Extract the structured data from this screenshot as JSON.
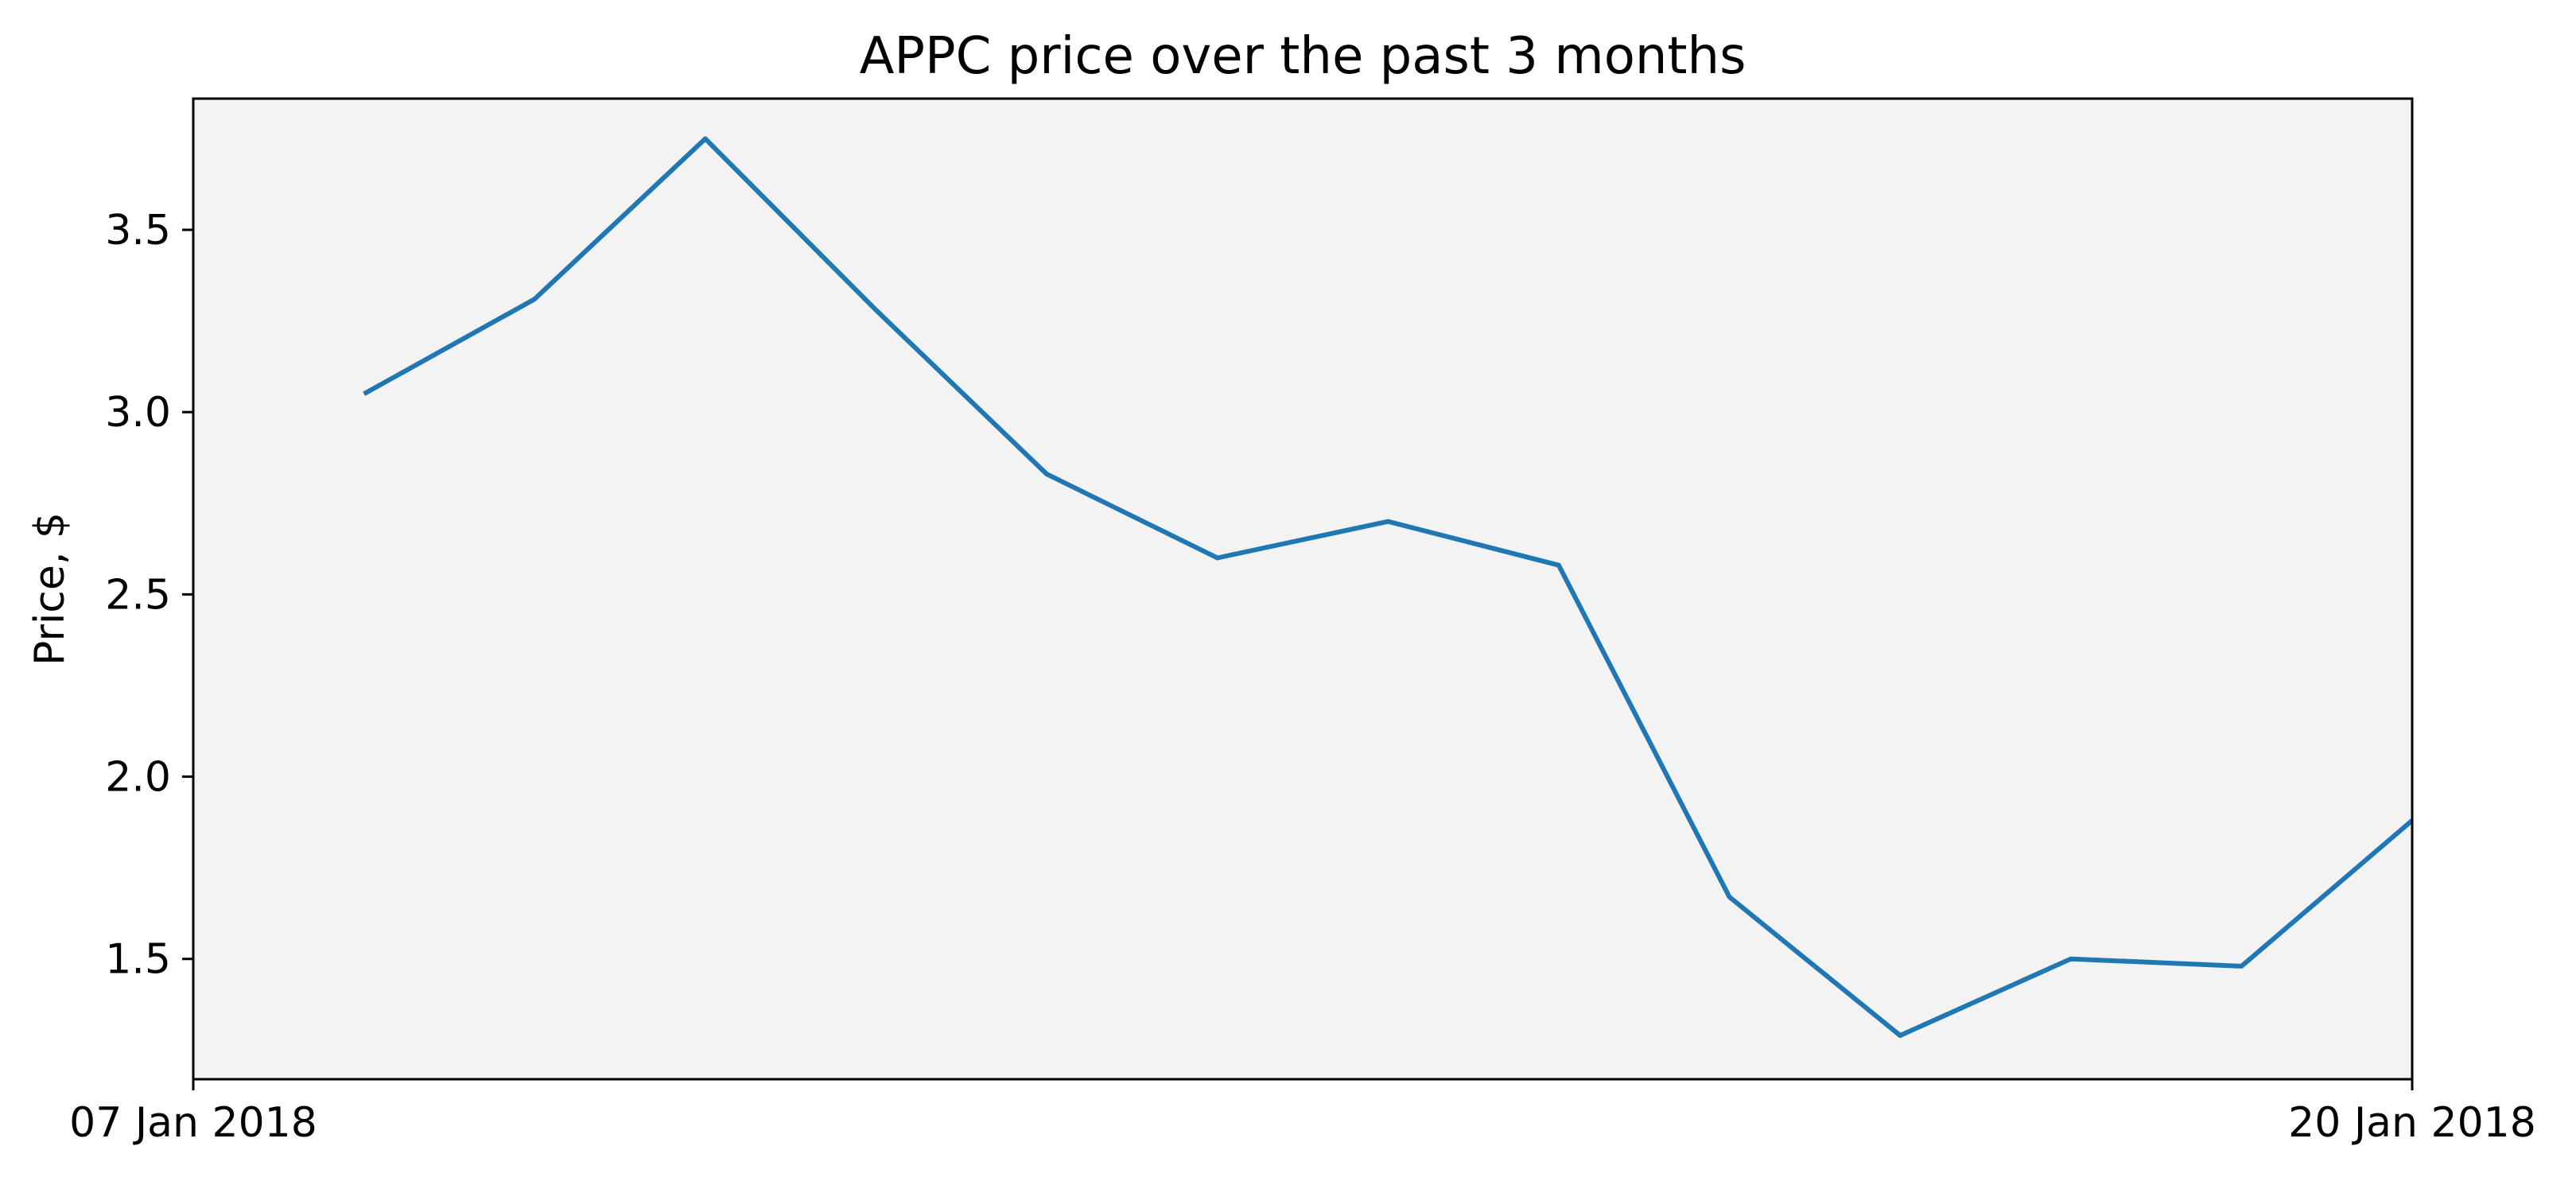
{
  "chart_data": {
    "type": "line",
    "title": "APPC price over the past 3 months",
    "xlabel": "",
    "ylabel": "Price, $",
    "x_tick_labels": [
      "07 Jan 2018",
      "20 Jan 2018"
    ],
    "y_ticks": [
      1.5,
      2.0,
      2.5,
      3.0,
      3.5
    ],
    "y_tick_labels": [
      "1.5",
      "2.0",
      "2.5",
      "3.0",
      "3.5"
    ],
    "xlim": [
      "2018-01-07",
      "2018-01-20"
    ],
    "ylim": [
      1.17,
      3.86
    ],
    "grid": false,
    "legend": "none",
    "background_color": "#f3f3f3",
    "series": [
      {
        "color": "#1f77b4",
        "x": [
          "2018-01-08",
          "2018-01-09",
          "2018-01-10",
          "2018-01-11",
          "2018-01-12",
          "2018-01-13",
          "2018-01-14",
          "2018-01-15",
          "2018-01-16",
          "2018-01-17",
          "2018-01-18",
          "2018-01-19",
          "2018-01-20"
        ],
        "values": [
          3.05,
          3.31,
          3.75,
          3.28,
          2.83,
          2.6,
          2.7,
          2.58,
          1.67,
          1.29,
          1.5,
          1.48,
          1.88
        ]
      }
    ]
  }
}
